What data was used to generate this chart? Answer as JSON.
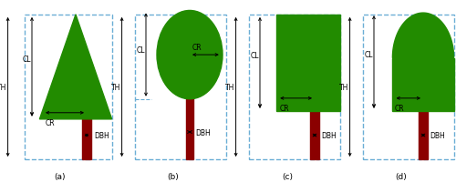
{
  "bg_color": "#ffffff",
  "dashed_box_color": "#6baed6",
  "green_color": "#228B00",
  "trunk_color": "#8B0000",
  "figsize": [
    5.0,
    2.01
  ],
  "dpi": 100,
  "panels": [
    "(a)",
    "(b)",
    "(c)",
    "(d)"
  ]
}
